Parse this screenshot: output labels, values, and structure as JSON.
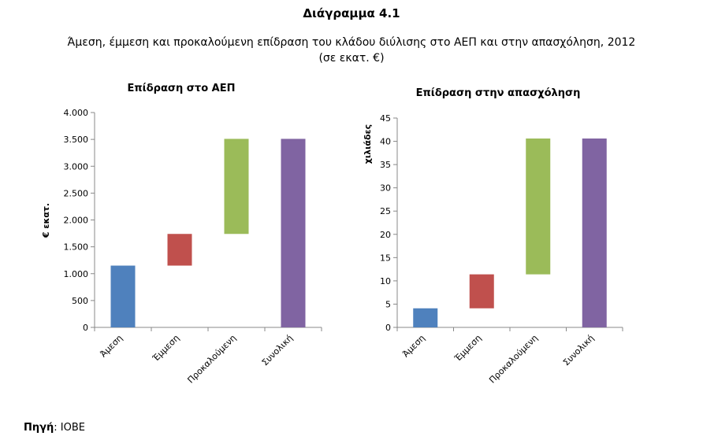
{
  "heading": "Διάγραμμα 4.1",
  "subtitle_line1": "Άμεση, έμμεση και προκαλούμενη επίδραση του κλάδου διύλισης στο ΑΕΠ και στην απασχόληση, 2012",
  "subtitle_line2": "(σε εκατ. €)",
  "source": {
    "label": "Πηγή",
    "value": ": IOBE"
  },
  "chart_data": [
    {
      "type": "bar",
      "subtype": "waterfall",
      "title": "Επίδραση στο ΑΕΠ",
      "ylabel": "€ εκατ.",
      "xlabel": "",
      "ylim": [
        0,
        4000
      ],
      "yticks": [
        0,
        500,
        1000,
        1500,
        2000,
        2500,
        3000,
        3500,
        4000
      ],
      "ytick_labels": [
        "0",
        "500",
        "1.000",
        "1.500",
        "2.000",
        "2.500",
        "3.000",
        "3.500",
        "4.000"
      ],
      "grid": false,
      "categories": [
        "Άμεση",
        "Έμμεση",
        "Προκαλούμενη",
        "Συνολική"
      ],
      "series": [
        {
          "values": [
            {
              "from": 0,
              "to": 1150
            },
            {
              "from": 1150,
              "to": 1740
            },
            {
              "from": 1740,
              "to": 3510
            },
            {
              "from": 0,
              "to": 3510
            }
          ]
        }
      ],
      "colors": [
        "#4f81bd",
        "#c0504d",
        "#9bbb59",
        "#8064a2"
      ]
    },
    {
      "type": "bar",
      "subtype": "waterfall",
      "title": "Επίδραση στην απασχόληση",
      "ylabel": "χιλιάδες",
      "xlabel": "",
      "ylim": [
        0,
        45
      ],
      "yticks": [
        0,
        5,
        10,
        15,
        20,
        25,
        30,
        35,
        40,
        45
      ],
      "ytick_labels": [
        "0",
        "5",
        "10",
        "15",
        "20",
        "25",
        "30",
        "35",
        "40",
        "45"
      ],
      "grid": false,
      "categories": [
        "Άμεση",
        "Έμμεση",
        "Προκαλούμενη",
        "Συνολική"
      ],
      "series": [
        {
          "values": [
            {
              "from": 0,
              "to": 4.1
            },
            {
              "from": 4.1,
              "to": 11.4
            },
            {
              "from": 11.4,
              "to": 40.6
            },
            {
              "from": 0,
              "to": 40.6
            }
          ]
        }
      ],
      "colors": [
        "#4f81bd",
        "#c0504d",
        "#9bbb59",
        "#8064a2"
      ]
    }
  ]
}
